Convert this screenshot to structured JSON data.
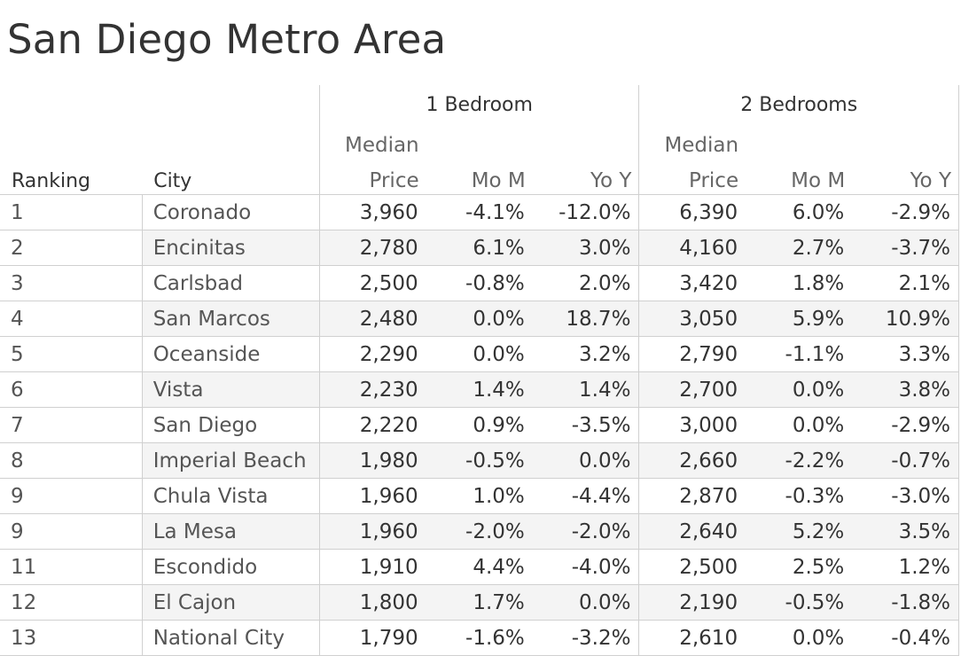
{
  "title": "San Diego Metro Area",
  "chart_data": {
    "type": "table",
    "groups": [
      "1 Bedroom",
      "2 Bedrooms"
    ],
    "headers": {
      "ranking": "Ranking",
      "city": "City",
      "median_top": "Median",
      "price": "Price",
      "mom": "Mo M",
      "yoy": "Yo Y"
    },
    "rows": [
      {
        "rank": "1",
        "city": "Coronado",
        "b1_price": "3,960",
        "b1_mom": "-4.1%",
        "b1_yoy": "-12.0%",
        "b2_price": "6,390",
        "b2_mom": "6.0%",
        "b2_yoy": "-2.9%"
      },
      {
        "rank": "2",
        "city": "Encinitas",
        "b1_price": "2,780",
        "b1_mom": "6.1%",
        "b1_yoy": "3.0%",
        "b2_price": "4,160",
        "b2_mom": "2.7%",
        "b2_yoy": "-3.7%"
      },
      {
        "rank": "3",
        "city": "Carlsbad",
        "b1_price": "2,500",
        "b1_mom": "-0.8%",
        "b1_yoy": "2.0%",
        "b2_price": "3,420",
        "b2_mom": "1.8%",
        "b2_yoy": "2.1%"
      },
      {
        "rank": "4",
        "city": "San Marcos",
        "b1_price": "2,480",
        "b1_mom": "0.0%",
        "b1_yoy": "18.7%",
        "b2_price": "3,050",
        "b2_mom": "5.9%",
        "b2_yoy": "10.9%"
      },
      {
        "rank": "5",
        "city": "Oceanside",
        "b1_price": "2,290",
        "b1_mom": "0.0%",
        "b1_yoy": "3.2%",
        "b2_price": "2,790",
        "b2_mom": "-1.1%",
        "b2_yoy": "3.3%"
      },
      {
        "rank": "6",
        "city": "Vista",
        "b1_price": "2,230",
        "b1_mom": "1.4%",
        "b1_yoy": "1.4%",
        "b2_price": "2,700",
        "b2_mom": "0.0%",
        "b2_yoy": "3.8%"
      },
      {
        "rank": "7",
        "city": "San Diego",
        "b1_price": "2,220",
        "b1_mom": "0.9%",
        "b1_yoy": "-3.5%",
        "b2_price": "3,000",
        "b2_mom": "0.0%",
        "b2_yoy": "-2.9%"
      },
      {
        "rank": "8",
        "city": "Imperial Beach",
        "b1_price": "1,980",
        "b1_mom": "-0.5%",
        "b1_yoy": "0.0%",
        "b2_price": "2,660",
        "b2_mom": "-2.2%",
        "b2_yoy": "-0.7%"
      },
      {
        "rank": "9",
        "city": "Chula Vista",
        "b1_price": "1,960",
        "b1_mom": "1.0%",
        "b1_yoy": "-4.4%",
        "b2_price": "2,870",
        "b2_mom": "-0.3%",
        "b2_yoy": "-3.0%"
      },
      {
        "rank": "9",
        "city": "La Mesa",
        "b1_price": "1,960",
        "b1_mom": "-2.0%",
        "b1_yoy": "-2.0%",
        "b2_price": "2,640",
        "b2_mom": "5.2%",
        "b2_yoy": "3.5%"
      },
      {
        "rank": "11",
        "city": "Escondido",
        "b1_price": "1,910",
        "b1_mom": "4.4%",
        "b1_yoy": "-4.0%",
        "b2_price": "2,500",
        "b2_mom": "2.5%",
        "b2_yoy": "1.2%"
      },
      {
        "rank": "12",
        "city": "El Cajon",
        "b1_price": "1,800",
        "b1_mom": "1.7%",
        "b1_yoy": "0.0%",
        "b2_price": "2,190",
        "b2_mom": "-0.5%",
        "b2_yoy": "-1.8%"
      },
      {
        "rank": "13",
        "city": "National City",
        "b1_price": "1,790",
        "b1_mom": "-1.6%",
        "b1_yoy": "-3.2%",
        "b2_price": "2,610",
        "b2_mom": "0.0%",
        "b2_yoy": "-0.4%"
      }
    ]
  },
  "colors": {
    "text": "#333333",
    "muted_text": "#666666",
    "band": "#f4f4f4",
    "rule": "#d0d0d0"
  }
}
